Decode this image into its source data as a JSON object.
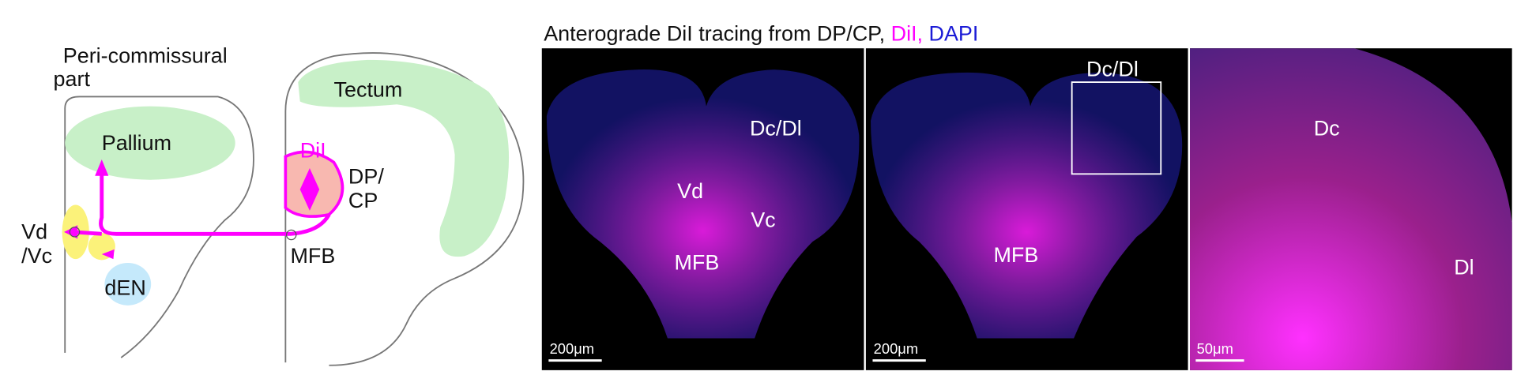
{
  "schematic": {
    "region_title": [
      "Peri-commissural",
      "part"
    ],
    "labels": {
      "pallium": "Pallium",
      "tectum": "Tectum",
      "dil": "DiI",
      "dp_cp": [
        "DP/",
        "CP"
      ],
      "vd_vc": [
        "Vd",
        "/Vc"
      ],
      "mfb": "MFB",
      "den": "dEN"
    }
  },
  "title": {
    "main": "Anterograde DiI tracing from DP/CP, ",
    "dil": "DiI,",
    "dapi": " DAPI"
  },
  "panels": [
    {
      "labels": [
        "Dc/Dl",
        "Vd",
        "Vc",
        "MFB"
      ],
      "scale": "200μm"
    },
    {
      "labels": [
        "Dc/Dl",
        "MFB"
      ],
      "scale": "200μm"
    },
    {
      "labels": [
        "Dc",
        "Dl"
      ],
      "scale": "50μm"
    }
  ]
}
